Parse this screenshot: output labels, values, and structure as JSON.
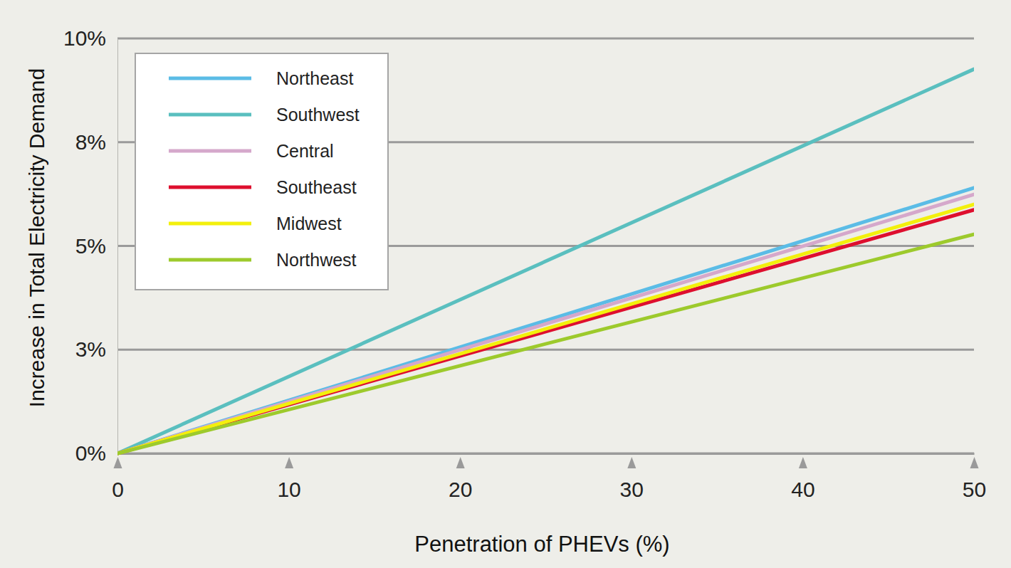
{
  "chart_data": {
    "type": "line",
    "x_label": "Penetration of PHEVs (%)",
    "y_label": "Increase in Total Electricity Demand",
    "x": [
      0,
      50
    ],
    "series": [
      {
        "name": "Northeast",
        "color": "#5bbce6",
        "values": [
          0,
          6.4
        ]
      },
      {
        "name": "Southwest",
        "color": "#5abfbf",
        "values": [
          0,
          9.26
        ]
      },
      {
        "name": "Central",
        "color": "#d5a8cb",
        "values": [
          0,
          6.24
        ]
      },
      {
        "name": "Southeast",
        "color": "#de0f2e",
        "values": [
          0,
          5.87
        ]
      },
      {
        "name": "Midwest",
        "color": "#f3f00c",
        "values": [
          0,
          6.0
        ]
      },
      {
        "name": "Northwest",
        "color": "#9dca2c",
        "values": [
          0,
          5.28
        ]
      }
    ],
    "xlim": [
      0,
      50
    ],
    "xticks": [
      0,
      10,
      20,
      30,
      40,
      50
    ],
    "ylim": [
      0,
      10
    ],
    "yticks": [
      {
        "value": 0,
        "label": "0%"
      },
      {
        "value": 2.5,
        "label": "3%"
      },
      {
        "value": 5,
        "label": "5%"
      },
      {
        "value": 7.5,
        "label": "8%"
      },
      {
        "value": 10,
        "label": "10%"
      }
    ],
    "grid": true,
    "legend": "upper left"
  }
}
